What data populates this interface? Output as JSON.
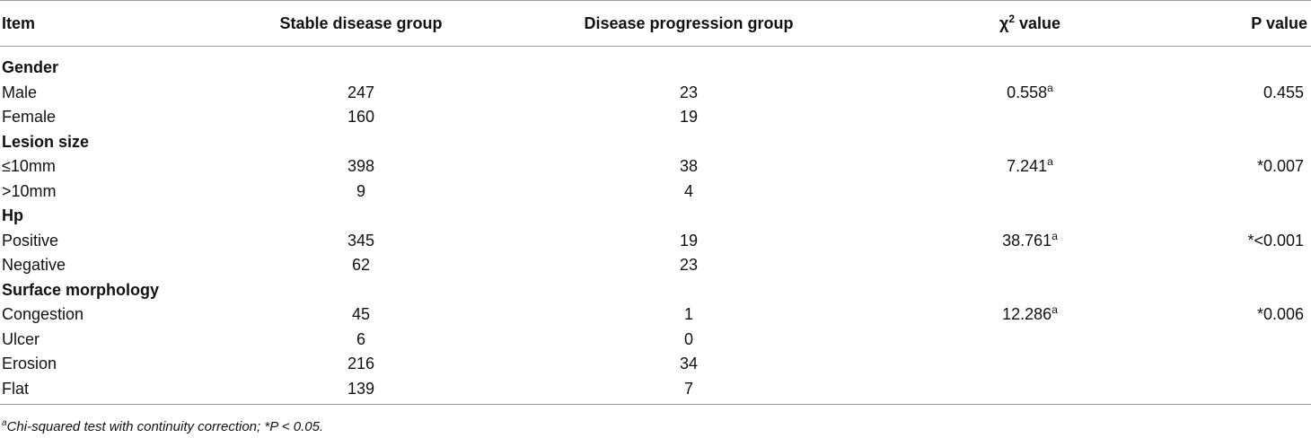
{
  "header": {
    "item": "Item",
    "stable": "Stable disease group",
    "progression": "Disease progression group",
    "chi_symbol": "χ",
    "chi_exp": "2",
    "chi_rest": " value",
    "p": "P value"
  },
  "rows": [
    {
      "item": "Gender",
      "group": true
    },
    {
      "item": "Male",
      "stable": "247",
      "progression": "23",
      "chi": "0.558",
      "chi_sup": "a",
      "p": "0.455"
    },
    {
      "item": "Female",
      "stable": "160",
      "progression": "19"
    },
    {
      "item": "Lesion size",
      "group": true
    },
    {
      "item": "≤10mm",
      "stable": "398",
      "progression": "38",
      "chi": "7.241",
      "chi_sup": "a",
      "p": "*0.007"
    },
    {
      "item": ">10mm",
      "stable": "9",
      "progression": "4"
    },
    {
      "item": "Hp",
      "group": true
    },
    {
      "item": "Positive",
      "stable": "345",
      "progression": "19",
      "chi": "38.761",
      "chi_sup": "a",
      "p": "*<0.001"
    },
    {
      "item": "Negative",
      "stable": "62",
      "progression": "23"
    },
    {
      "item": "Surface morphology",
      "group": true
    },
    {
      "item": "Congestion",
      "stable": "45",
      "progression": "1",
      "chi": "12.286",
      "chi_sup": "a",
      "p": "*0.006"
    },
    {
      "item": "Ulcer",
      "stable": "6",
      "progression": "0"
    },
    {
      "item": "Erosion",
      "stable": "216",
      "progression": "34"
    },
    {
      "item": "Flat",
      "stable": "139",
      "progression": "7"
    }
  ],
  "footnote": {
    "sup": "a",
    "text": "Chi-squared test with continuity correction; *P < 0.05."
  }
}
